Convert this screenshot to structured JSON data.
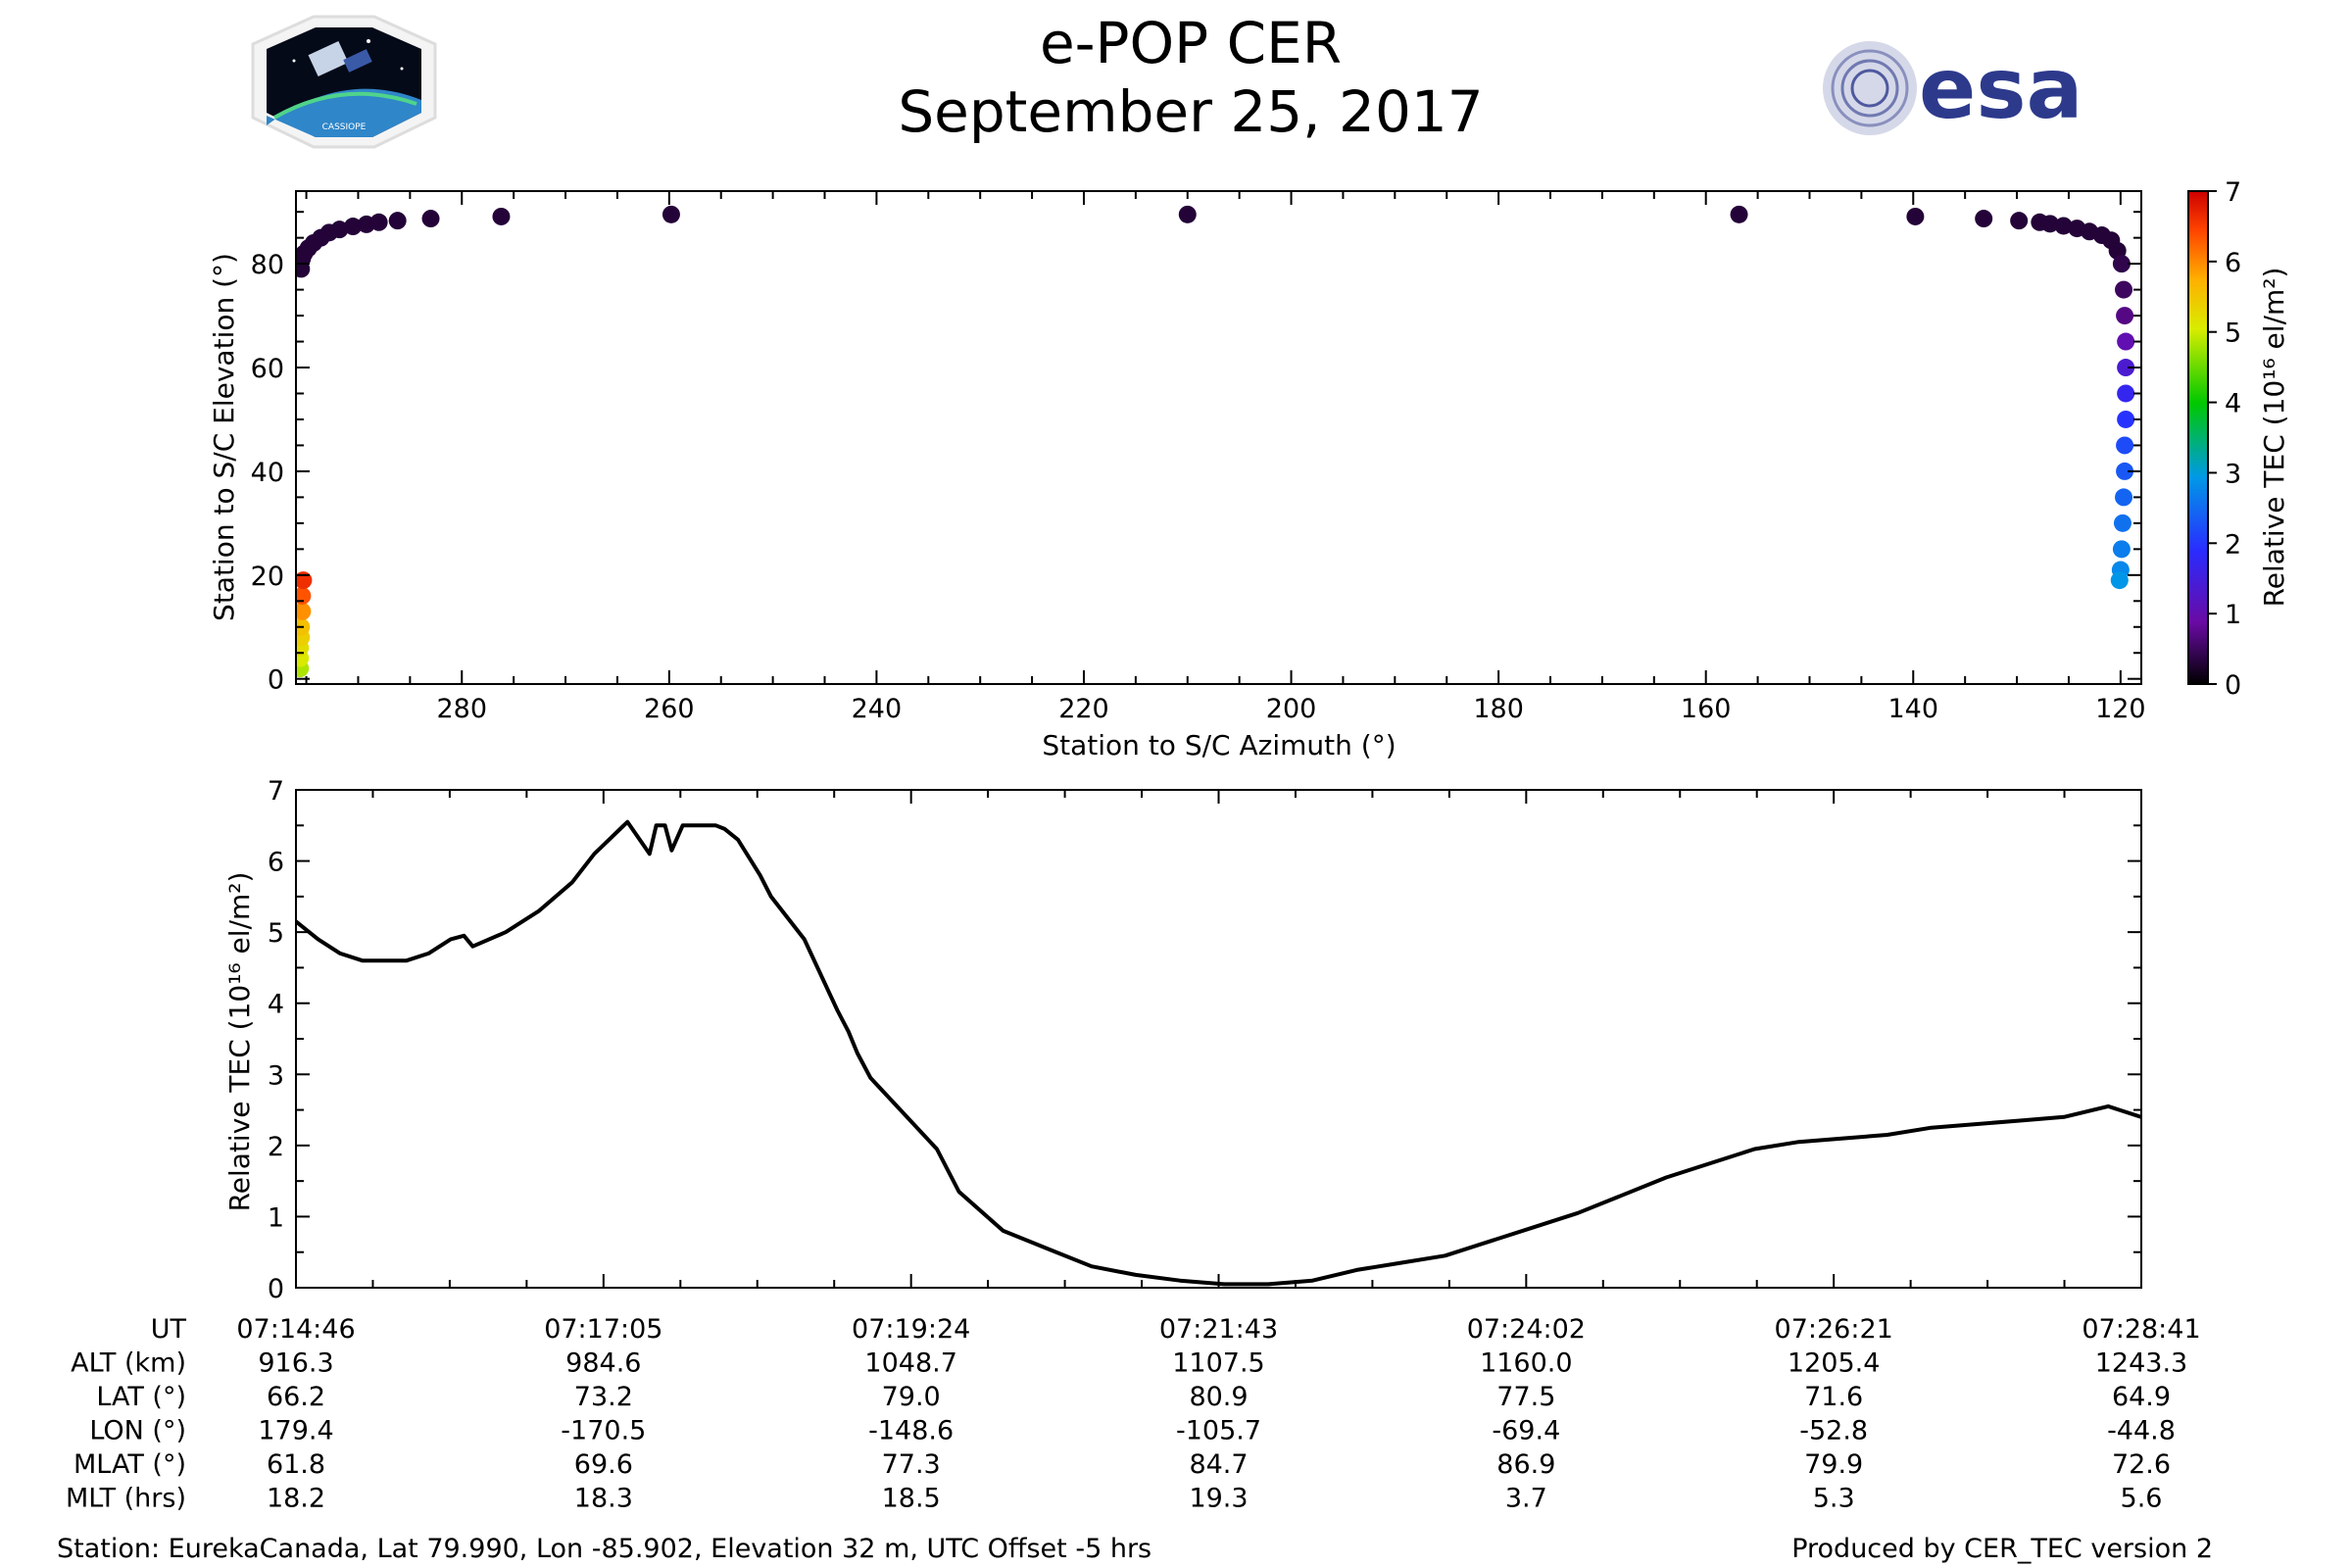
{
  "title": "e-POP CER",
  "date": "September 25, 2017",
  "logos": {
    "left": "CASSIOPE",
    "right": "esa",
    "right_color": "#2d3a8c"
  },
  "chart_data": [
    {
      "type": "scatter",
      "xlabel": "Station to S/C Azimuth (°)",
      "ylabel": "Station to S/C Elevation (°)",
      "xlim": [
        296,
        118
      ],
      "ylim": [
        -1,
        94
      ],
      "xticks": [
        280,
        260,
        240,
        220,
        200,
        180,
        160,
        140,
        120
      ],
      "yticks": [
        0,
        20,
        40,
        60,
        80
      ],
      "colorbar": {
        "label": "Relative TEC (10¹⁶ el/m²)",
        "min": 0,
        "max": 7,
        "ticks": [
          0,
          1,
          2,
          3,
          4,
          5,
          6,
          7
        ],
        "colormap": [
          "#000000",
          "#6a0aa4",
          "#2a2cff",
          "#0099e6",
          "#00c800",
          "#d8ec00",
          "#ffb000",
          "#ff4400",
          "#cc0000"
        ]
      },
      "points": [
        {
          "az": 295.6,
          "el": 2,
          "tec": 4.2
        },
        {
          "az": 295.6,
          "el": 4,
          "tec": 4.4
        },
        {
          "az": 295.6,
          "el": 6,
          "tec": 4.6
        },
        {
          "az": 295.5,
          "el": 8,
          "tec": 4.8
        },
        {
          "az": 295.5,
          "el": 10,
          "tec": 5.0
        },
        {
          "az": 295.4,
          "el": 13,
          "tec": 5.5
        },
        {
          "az": 295.4,
          "el": 16,
          "tec": 6.0
        },
        {
          "az": 295.3,
          "el": 19,
          "tec": 6.4
        },
        {
          "az": 295.5,
          "el": 79,
          "tec": 0.3
        },
        {
          "az": 295.4,
          "el": 81,
          "tec": 0.3
        },
        {
          "az": 295.2,
          "el": 82,
          "tec": 0.3
        },
        {
          "az": 294.8,
          "el": 83,
          "tec": 0.3
        },
        {
          "az": 294.3,
          "el": 84,
          "tec": 0.3
        },
        {
          "az": 293.6,
          "el": 85,
          "tec": 0.3
        },
        {
          "az": 292.8,
          "el": 86,
          "tec": 0.3
        },
        {
          "az": 291.8,
          "el": 86.6,
          "tec": 0.3
        },
        {
          "az": 290.5,
          "el": 87.2,
          "tec": 0.3
        },
        {
          "az": 289.2,
          "el": 87.6,
          "tec": 0.3
        },
        {
          "az": 288,
          "el": 88,
          "tec": 0.3
        },
        {
          "az": 286.2,
          "el": 88.3,
          "tec": 0.3
        },
        {
          "az": 283,
          "el": 88.7,
          "tec": 0.3
        },
        {
          "az": 276.2,
          "el": 89.1,
          "tec": 0.3
        },
        {
          "az": 259.8,
          "el": 89.5,
          "tec": 0.3
        },
        {
          "az": 210,
          "el": 89.5,
          "tec": 0.3
        },
        {
          "az": 156.8,
          "el": 89.5,
          "tec": 0.3
        },
        {
          "az": 139.8,
          "el": 89.1,
          "tec": 0.3
        },
        {
          "az": 133.2,
          "el": 88.7,
          "tec": 0.3
        },
        {
          "az": 129.8,
          "el": 88.3,
          "tec": 0.3
        },
        {
          "az": 127.8,
          "el": 88,
          "tec": 0.3
        },
        {
          "az": 126.8,
          "el": 87.7,
          "tec": 0.3
        },
        {
          "az": 125.5,
          "el": 87.3,
          "tec": 0.3
        },
        {
          "az": 124.2,
          "el": 86.8,
          "tec": 0.3
        },
        {
          "az": 123,
          "el": 86.2,
          "tec": 0.3
        },
        {
          "az": 121.8,
          "el": 85.5,
          "tec": 0.3
        },
        {
          "az": 120.9,
          "el": 84.5,
          "tec": 0.3
        },
        {
          "az": 120.3,
          "el": 82.5,
          "tec": 0.3
        },
        {
          "az": 119.9,
          "el": 80,
          "tec": 0.4
        },
        {
          "az": 119.7,
          "el": 75,
          "tec": 0.5
        },
        {
          "az": 119.6,
          "el": 70,
          "tec": 0.7
        },
        {
          "az": 119.5,
          "el": 65,
          "tec": 1.0
        },
        {
          "az": 119.5,
          "el": 60,
          "tec": 1.3
        },
        {
          "az": 119.5,
          "el": 55,
          "tec": 1.6
        },
        {
          "az": 119.5,
          "el": 50,
          "tec": 1.8
        },
        {
          "az": 119.6,
          "el": 45,
          "tec": 2.0
        },
        {
          "az": 119.6,
          "el": 40,
          "tec": 2.1
        },
        {
          "az": 119.7,
          "el": 35,
          "tec": 2.2
        },
        {
          "az": 119.8,
          "el": 30,
          "tec": 2.3
        },
        {
          "az": 119.9,
          "el": 25,
          "tec": 2.4
        },
        {
          "az": 120,
          "el": 21,
          "tec": 2.5
        },
        {
          "az": 120.1,
          "el": 19,
          "tec": 2.6
        }
      ]
    },
    {
      "type": "line",
      "ylabel": "Relative TEC (10¹⁶ el/m²)",
      "xlim": [
        0,
        835
      ],
      "ylim": [
        0,
        7
      ],
      "yticks": [
        0,
        1,
        2,
        3,
        4,
        5,
        6,
        7
      ],
      "x_seconds": [
        0,
        10,
        20,
        30,
        40,
        50,
        60,
        70,
        76,
        80,
        95,
        110,
        125,
        135,
        150,
        160,
        163,
        167,
        170,
        175,
        180,
        185,
        190,
        194,
        200,
        210,
        215,
        220,
        230,
        245,
        250,
        254,
        260,
        290,
        300,
        320,
        340,
        360,
        380,
        400,
        420,
        440,
        460,
        480,
        500,
        520,
        540,
        560,
        580,
        600,
        620,
        640,
        660,
        680,
        700,
        720,
        740,
        760,
        780,
        800,
        820,
        835
      ],
      "tec": [
        5.15,
        4.9,
        4.7,
        4.6,
        4.6,
        4.6,
        4.7,
        4.9,
        4.95,
        4.8,
        5.0,
        5.3,
        5.7,
        6.1,
        6.55,
        6.1,
        6.5,
        6.5,
        6.15,
        6.5,
        6.5,
        6.5,
        6.5,
        6.45,
        6.3,
        5.8,
        5.5,
        5.3,
        4.9,
        3.9,
        3.6,
        3.3,
        2.95,
        1.95,
        1.35,
        0.8,
        0.55,
        0.3,
        0.18,
        0.1,
        0.05,
        0.05,
        0.1,
        0.25,
        0.35,
        0.45,
        0.65,
        0.85,
        1.05,
        1.3,
        1.55,
        1.75,
        1.95,
        2.05,
        2.1,
        2.15,
        2.25,
        2.3,
        2.35,
        2.4,
        2.55,
        2.4
      ]
    }
  ],
  "info_table": {
    "row_labels": [
      "UT",
      "ALT (km)",
      "LAT (°)",
      "LON (°)",
      "MLAT (°)",
      "MLT (hrs)"
    ],
    "columns": [
      [
        "07:14:46",
        "916.3",
        "66.2",
        "179.4",
        "61.8",
        "18.2"
      ],
      [
        "07:17:05",
        "984.6",
        "73.2",
        "-170.5",
        "69.6",
        "18.3"
      ],
      [
        "07:19:24",
        "1048.7",
        "79.0",
        "-148.6",
        "77.3",
        "18.5"
      ],
      [
        "07:21:43",
        "1107.5",
        "80.9",
        "-105.7",
        "84.7",
        "19.3"
      ],
      [
        "07:24:02",
        "1160.0",
        "77.5",
        "-69.4",
        "86.9",
        "3.7"
      ],
      [
        "07:26:21",
        "1205.4",
        "71.6",
        "-52.8",
        "79.9",
        "5.3"
      ],
      [
        "07:28:41",
        "1243.3",
        "64.9",
        "-44.8",
        "72.6",
        "5.6"
      ]
    ]
  },
  "footer": {
    "station": "Station: EurekaCanada, Lat 79.990, Lon -85.902, Elevation 32 m, UTC Offset -5 hrs",
    "produced": "Produced by CER_TEC version 2"
  }
}
